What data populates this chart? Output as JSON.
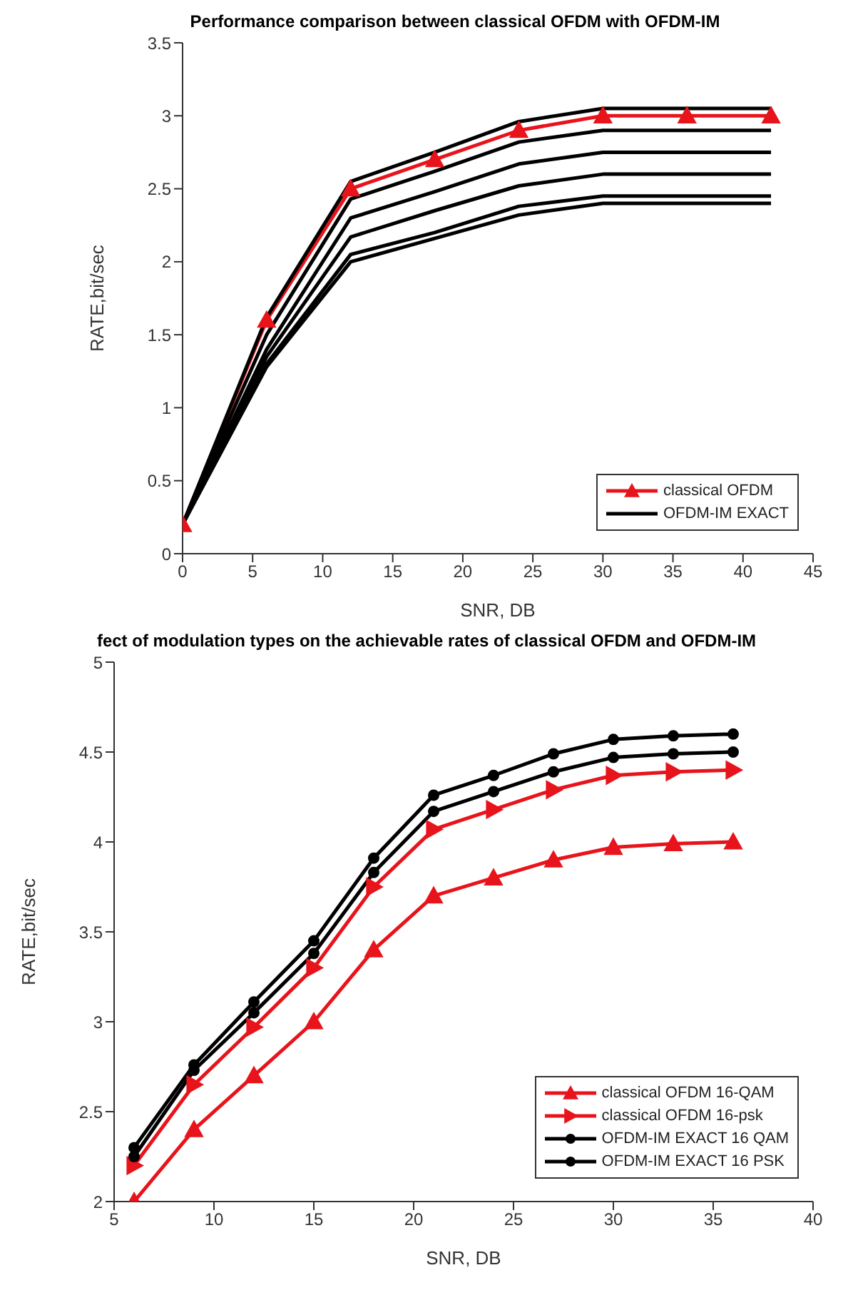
{
  "chart_data": [
    {
      "type": "line",
      "title": "Performance comparison between classical OFDM with OFDM-IM",
      "xlabel": "SNR,  DB",
      "ylabel": "RATE,bit/sec",
      "x": [
        0,
        6,
        12,
        18,
        24,
        30,
        36,
        42
      ],
      "xlim": [
        0,
        45
      ],
      "xticks": [
        0,
        5,
        10,
        15,
        20,
        25,
        30,
        35,
        40,
        45
      ],
      "ylim": [
        0,
        3.5
      ],
      "yticks": [
        0,
        0.5,
        1,
        1.5,
        2,
        2.5,
        3,
        3.5
      ],
      "legend": "bottom right",
      "grid": false,
      "line_style": "solid",
      "series": [
        {
          "name": "classical OFDM",
          "color": "#e8141b",
          "marker": "triangle",
          "values": [
            0.2,
            1.6,
            2.5,
            2.7,
            2.9,
            3.0,
            3.0,
            3.0
          ]
        },
        {
          "name": "OFDM-IM EXACT",
          "color": "#000000",
          "marker": "none",
          "values": [
            0.2,
            1.62,
            2.55,
            2.75,
            2.96,
            3.05,
            3.05,
            3.05
          ]
        },
        {
          "color": "#000000",
          "marker": "none",
          "values": [
            0.2,
            1.5,
            2.43,
            2.62,
            2.82,
            2.9,
            2.9,
            2.9
          ]
        },
        {
          "color": "#000000",
          "marker": "none",
          "values": [
            0.2,
            1.4,
            2.3,
            2.48,
            2.67,
            2.75,
            2.75,
            2.75
          ]
        },
        {
          "color": "#000000",
          "marker": "none",
          "values": [
            0.2,
            1.35,
            2.17,
            2.35,
            2.52,
            2.6,
            2.6,
            2.6
          ]
        },
        {
          "color": "#000000",
          "marker": "none",
          "values": [
            0.2,
            1.3,
            2.05,
            2.2,
            2.38,
            2.45,
            2.45,
            2.45
          ]
        },
        {
          "color": "#000000",
          "marker": "none",
          "values": [
            0.2,
            1.28,
            2.0,
            2.16,
            2.32,
            2.4,
            2.4,
            2.4
          ]
        }
      ]
    },
    {
      "type": "line",
      "title": "fect of modulation types on the achievable rates of classical OFDM and OFDM-IM",
      "xlabel": "SNR,  DB",
      "ylabel": "RATE,bit/sec",
      "x": [
        6,
        9,
        12,
        15,
        18,
        21,
        24,
        27,
        30,
        33,
        36
      ],
      "xlim": [
        5,
        40
      ],
      "xticks": [
        5,
        10,
        15,
        20,
        25,
        30,
        35,
        40
      ],
      "ylim": [
        2,
        5
      ],
      "yticks": [
        2,
        2.5,
        3,
        3.5,
        4,
        4.5,
        5
      ],
      "legend": "bottom right",
      "grid": false,
      "line_style": "solid",
      "series": [
        {
          "name": "classical OFDM 16-QAM",
          "color": "#e8141b",
          "marker": "triangle",
          "values": [
            2.0,
            2.4,
            2.7,
            3.0,
            3.4,
            3.7,
            3.8,
            3.9,
            3.97,
            3.99,
            4.0
          ]
        },
        {
          "name": "classical OFDM 16-psk",
          "color": "#e8141b",
          "marker": "triangle-right",
          "values": [
            2.2,
            2.65,
            2.97,
            3.3,
            3.75,
            4.07,
            4.18,
            4.29,
            4.37,
            4.39,
            4.4
          ]
        },
        {
          "name": "OFDM-IM EXACT 16 QAM",
          "color": "#000000",
          "marker": "circle",
          "values": [
            2.25,
            2.73,
            3.05,
            3.38,
            3.83,
            4.17,
            4.28,
            4.39,
            4.47,
            4.49,
            4.5
          ]
        },
        {
          "name": "OFDM-IM EXACT 16 PSK",
          "color": "#000000",
          "marker": "circle",
          "values": [
            2.3,
            2.76,
            3.11,
            3.45,
            3.91,
            4.26,
            4.37,
            4.49,
            4.57,
            4.59,
            4.6
          ]
        }
      ]
    }
  ]
}
